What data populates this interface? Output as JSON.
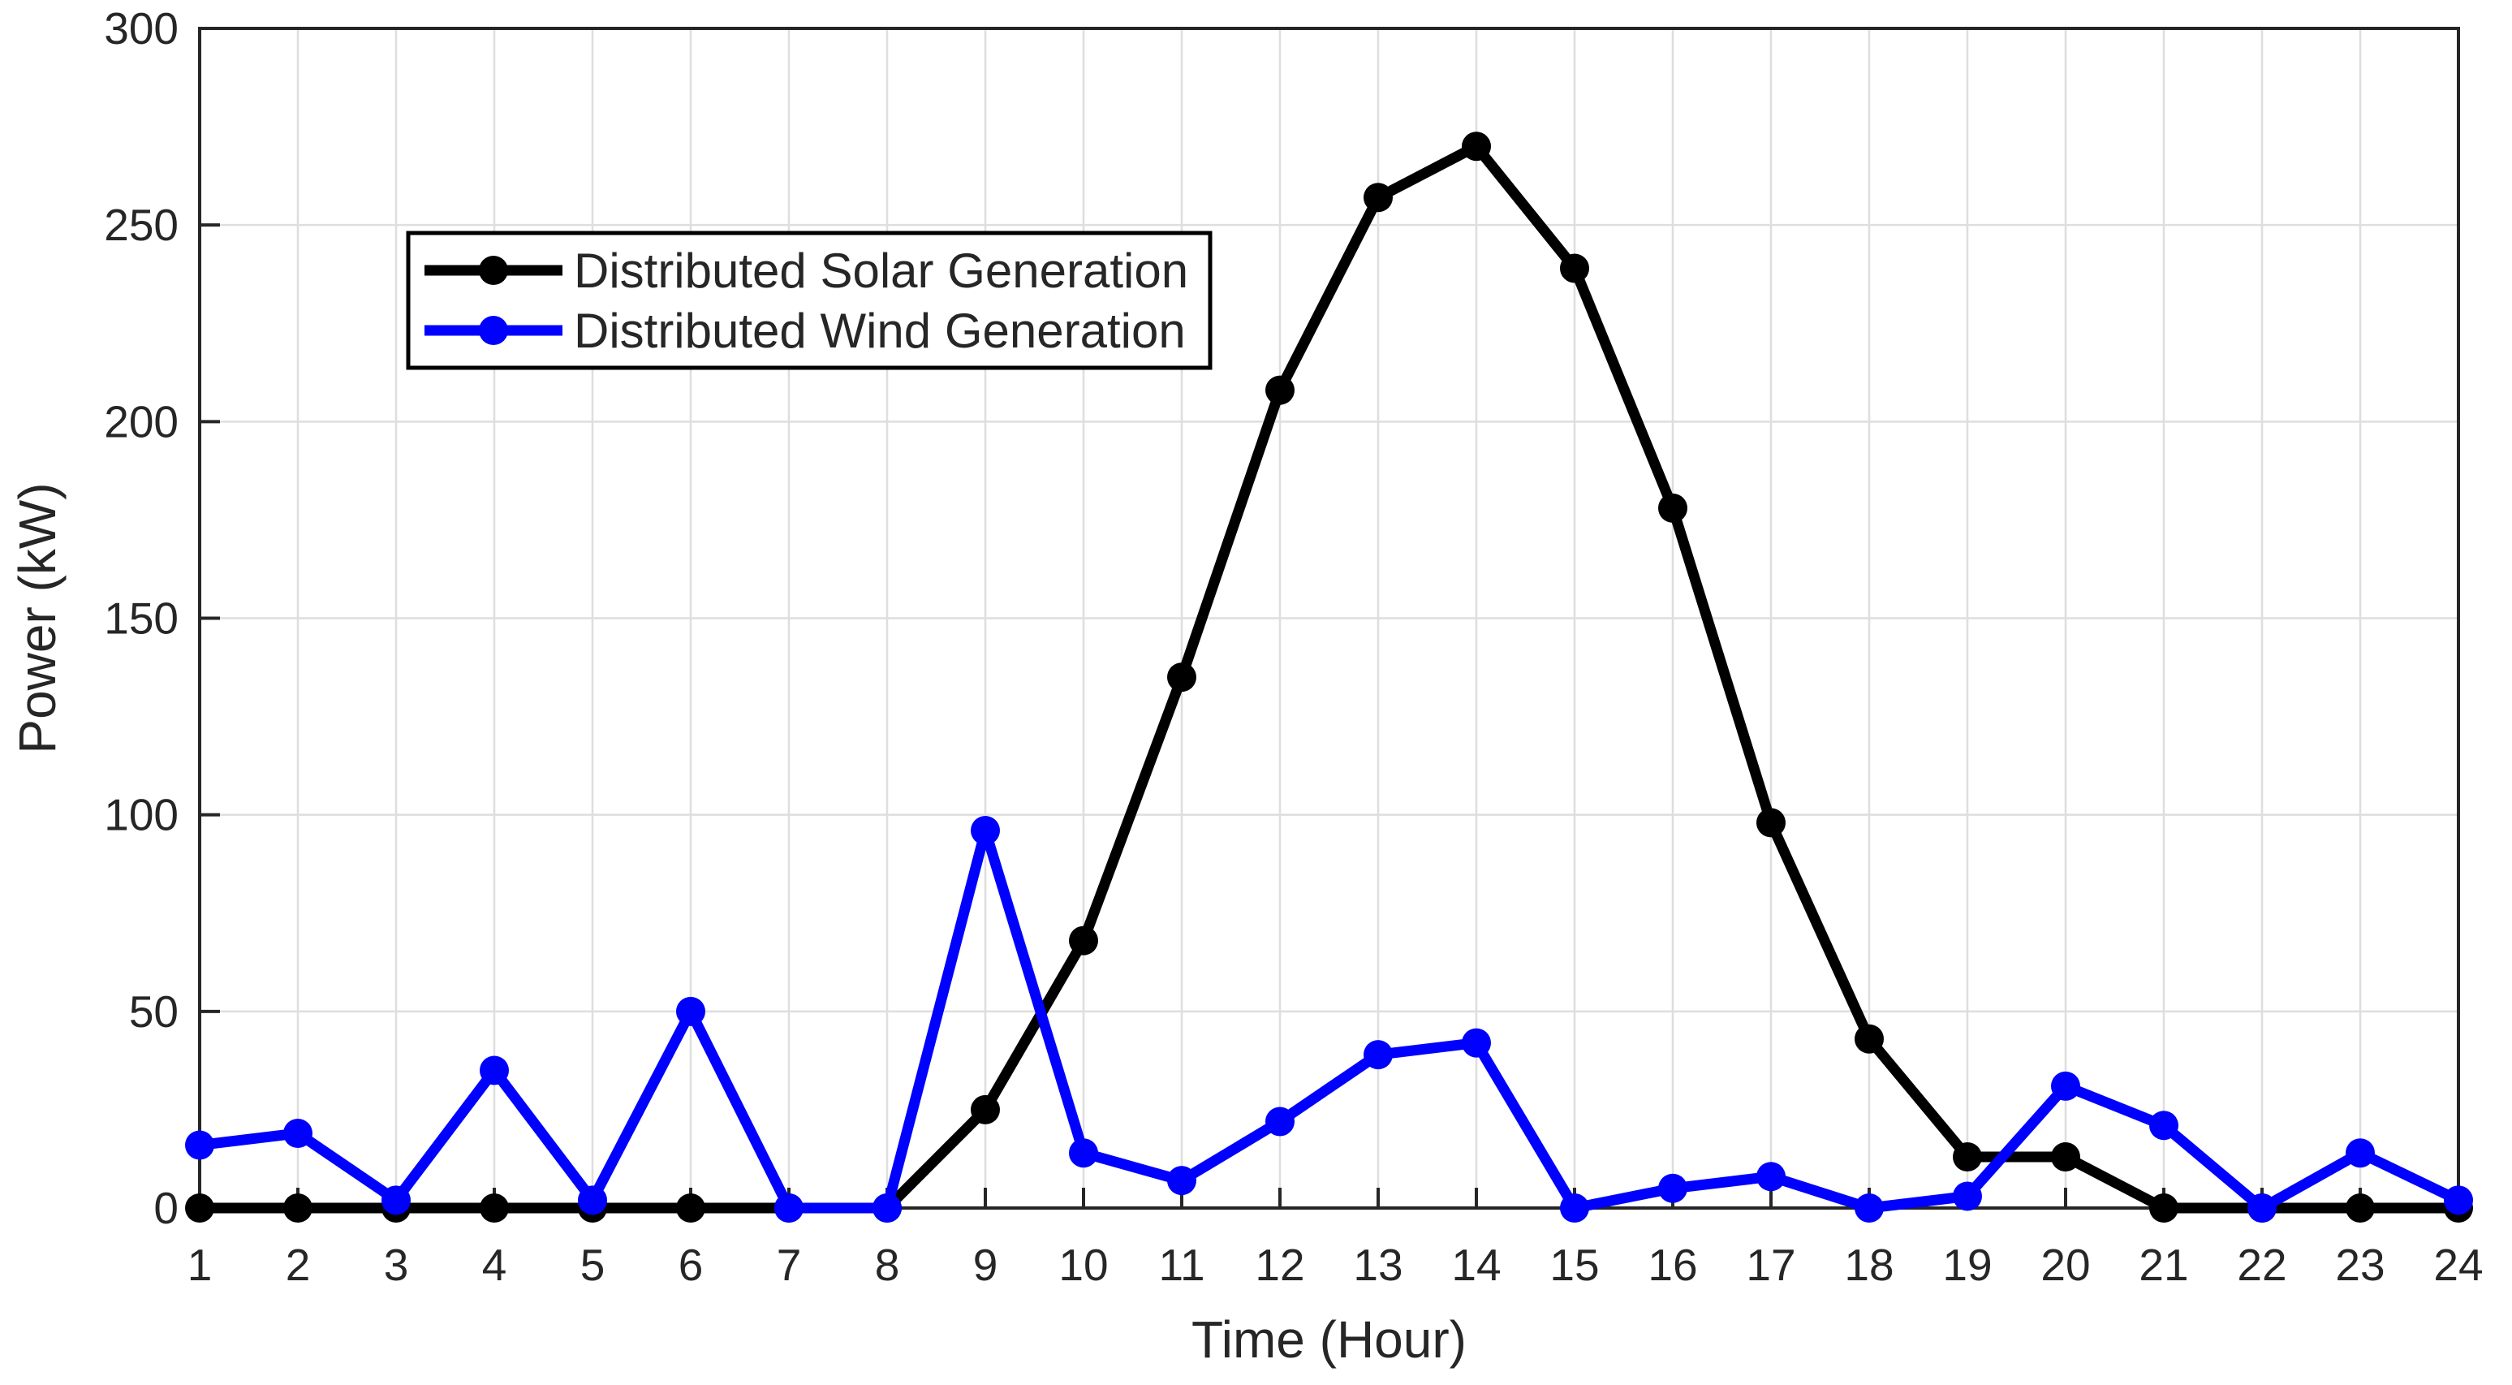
{
  "figure": {
    "background_color": "#ffffff",
    "axis_color": "#262626",
    "grid_color": "#dedede"
  },
  "chart_data": {
    "type": "line",
    "title": "",
    "xlabel": "Time (Hour)",
    "ylabel": "Power (kW)",
    "xlim": [
      1,
      24
    ],
    "ylim": [
      0,
      300
    ],
    "grid": "on",
    "legend_position": "upper-left-inside",
    "x_ticks": [
      1,
      2,
      3,
      4,
      5,
      6,
      7,
      8,
      9,
      10,
      11,
      12,
      13,
      14,
      15,
      16,
      17,
      18,
      19,
      20,
      21,
      22,
      23,
      24
    ],
    "y_ticks": [
      0,
      50,
      100,
      150,
      200,
      250,
      300
    ],
    "x": [
      1,
      2,
      3,
      4,
      5,
      6,
      7,
      8,
      9,
      10,
      11,
      12,
      13,
      14,
      15,
      16,
      17,
      18,
      19,
      20,
      21,
      22,
      23,
      24
    ],
    "series": [
      {
        "name": "Distributed Solar Generation",
        "color": "#000000",
        "marker": "circle",
        "values": [
          0,
          0,
          0,
          0,
          0,
          0,
          0,
          0,
          25,
          68,
          135,
          208,
          257,
          270,
          239,
          178,
          98,
          43,
          13,
          13,
          0,
          0,
          0,
          0
        ]
      },
      {
        "name": "Distributed Wind Generation",
        "color": "#0000ff",
        "marker": "circle",
        "values": [
          16,
          19,
          2,
          35,
          2,
          50,
          0,
          0,
          96,
          14,
          7,
          22,
          39,
          42,
          0,
          5,
          8,
          0,
          3,
          31,
          21,
          0,
          14,
          2
        ]
      }
    ]
  }
}
